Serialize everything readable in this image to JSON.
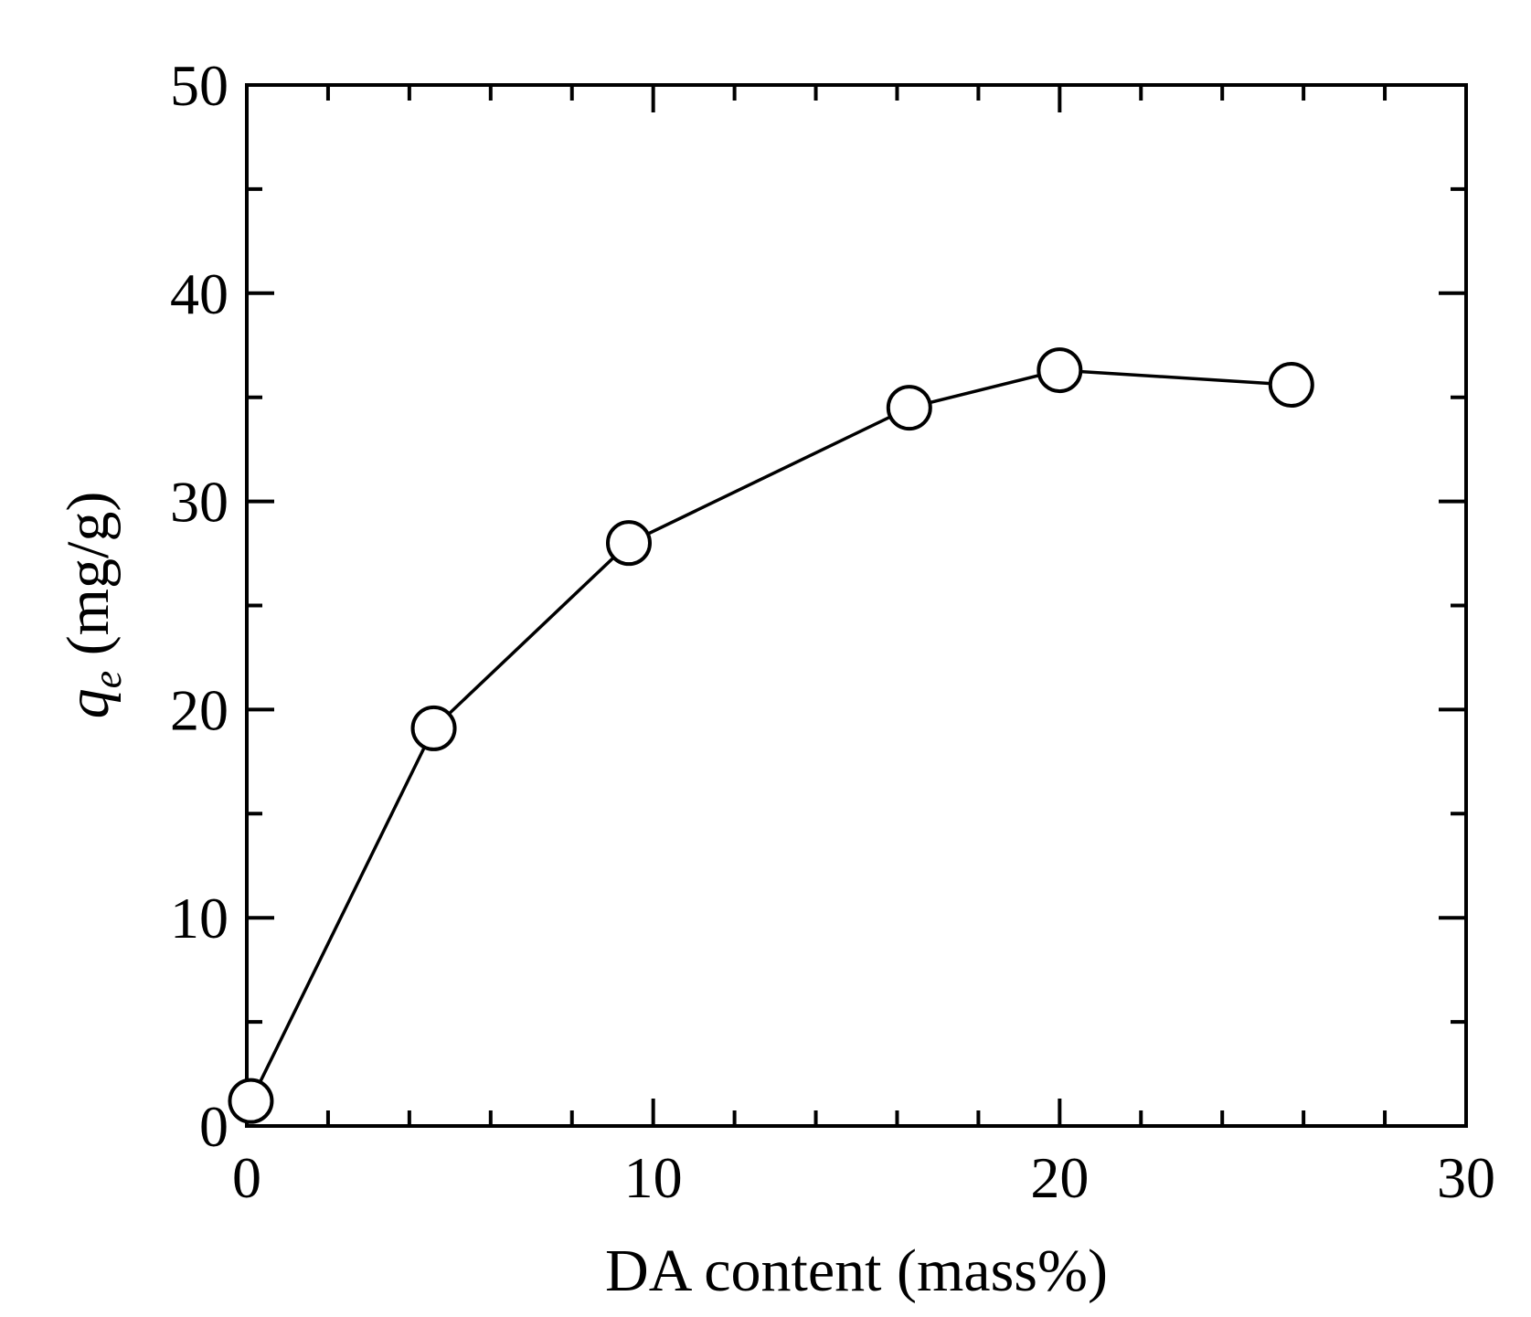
{
  "chart_data": {
    "type": "line",
    "title": "",
    "xlabel": "DA content (mass%)",
    "ylabel_symbol": "q",
    "ylabel_subscript": "e",
    "ylabel_unit": " (mg/g)",
    "xlim": [
      0,
      30
    ],
    "ylim": [
      0,
      50
    ],
    "x_major_ticks": [
      0,
      10,
      20,
      30
    ],
    "x_tick_labels": [
      "0",
      "10",
      "20",
      "30"
    ],
    "x_minor_step": 2,
    "y_major_ticks": [
      0,
      10,
      20,
      30,
      40,
      50
    ],
    "y_tick_labels": [
      "0",
      "10",
      "20",
      "30",
      "40",
      "50"
    ],
    "y_minor_step": 5,
    "grid": false,
    "marker": "open-circle",
    "series": [
      {
        "x": [
          0.1,
          4.6,
          9.4,
          16.3,
          20.0,
          25.7
        ],
        "y": [
          1.2,
          19.1,
          28.0,
          34.5,
          36.3,
          35.6
        ]
      }
    ]
  }
}
